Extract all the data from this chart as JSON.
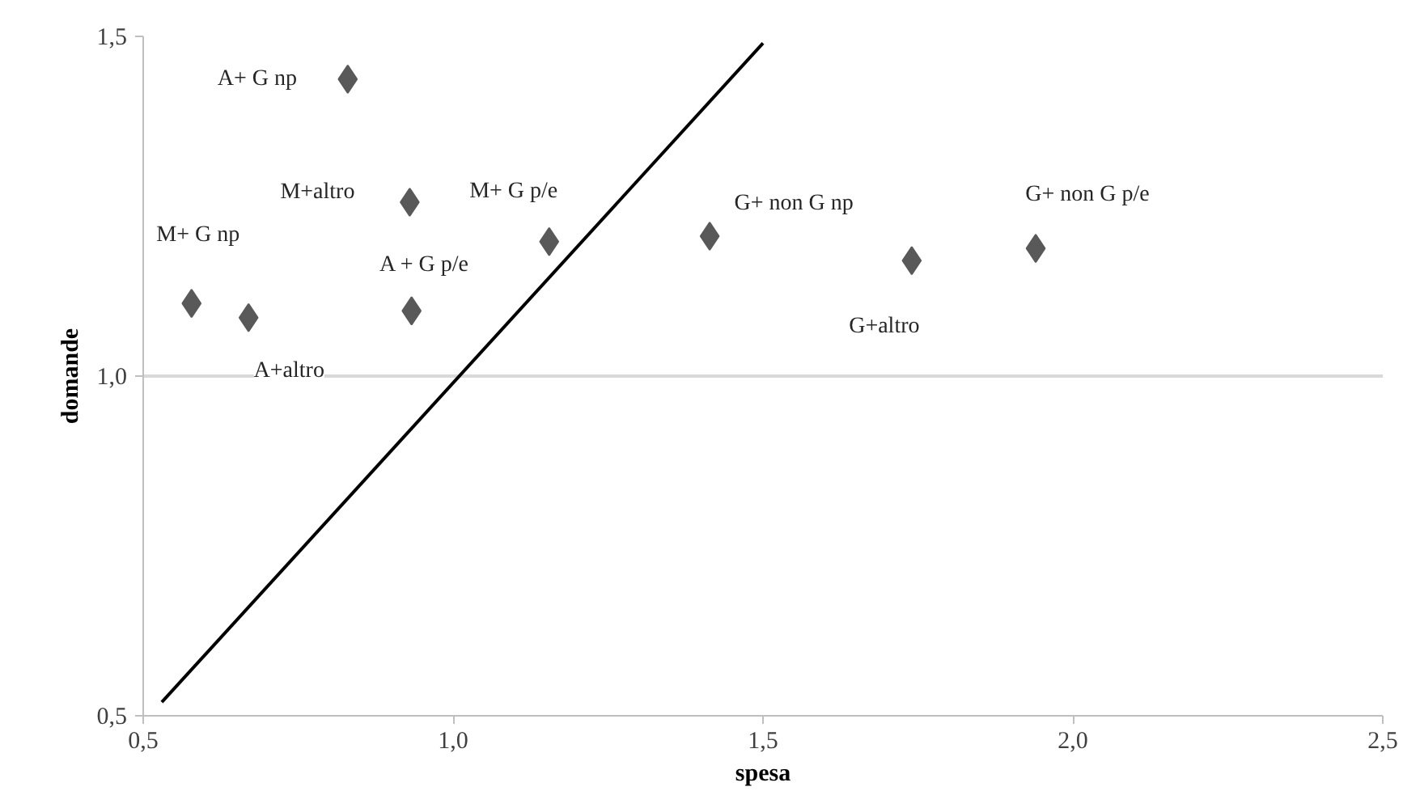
{
  "chart_data": {
    "type": "scatter",
    "xlabel": "spesa",
    "ylabel": "domande",
    "xlim": [
      0.5,
      2.5
    ],
    "ylim": [
      0.5,
      1.5
    ],
    "xticks": [
      {
        "value": 0.5,
        "label": "0,5"
      },
      {
        "value": 1.0,
        "label": "1,0"
      },
      {
        "value": 1.5,
        "label": "1,5"
      },
      {
        "value": 2.0,
        "label": "2,0"
      },
      {
        "value": 2.5,
        "label": "2,5"
      }
    ],
    "yticks": [
      {
        "value": 0.5,
        "label": "0,5"
      },
      {
        "value": 1.0,
        "label": "1,0"
      },
      {
        "value": 1.5,
        "label": "1,5"
      }
    ],
    "grid": "y",
    "series": [
      {
        "color": "#595959",
        "marker": "diamond",
        "x": [
          0.83,
          0.93,
          1.155,
          0.578,
          0.933,
          0.67,
          1.414,
          1.74,
          1.94
        ],
        "values": [
          1.437,
          1.256,
          1.198,
          1.107,
          1.096,
          1.086,
          1.206,
          1.17,
          1.188
        ]
      },
      {
        "type": "line",
        "color": "#000000",
        "x": [
          0.53,
          1.5
        ],
        "values": [
          0.52,
          1.49
        ]
      }
    ],
    "annotations": [
      {
        "text": "A+ G np",
        "x": 0.83,
        "y": 1.437
      },
      {
        "text": "M+altro",
        "x": 0.93,
        "y": 1.256
      },
      {
        "text": "M+ G p/e",
        "x": 1.155,
        "y": 1.198
      },
      {
        "text": "M+ G np",
        "x": 0.578,
        "y": 1.107
      },
      {
        "text": "A + G p/e",
        "x": 0.933,
        "y": 1.096
      },
      {
        "text": "A+altro",
        "x": 0.67,
        "y": 1.086
      },
      {
        "text": "G+ non G np",
        "x": 1.414,
        "y": 1.206
      },
      {
        "text": "G+altro",
        "x": 1.74,
        "y": 1.17
      },
      {
        "text": "G+ non G p/e",
        "x": 1.94,
        "y": 1.188
      }
    ]
  }
}
